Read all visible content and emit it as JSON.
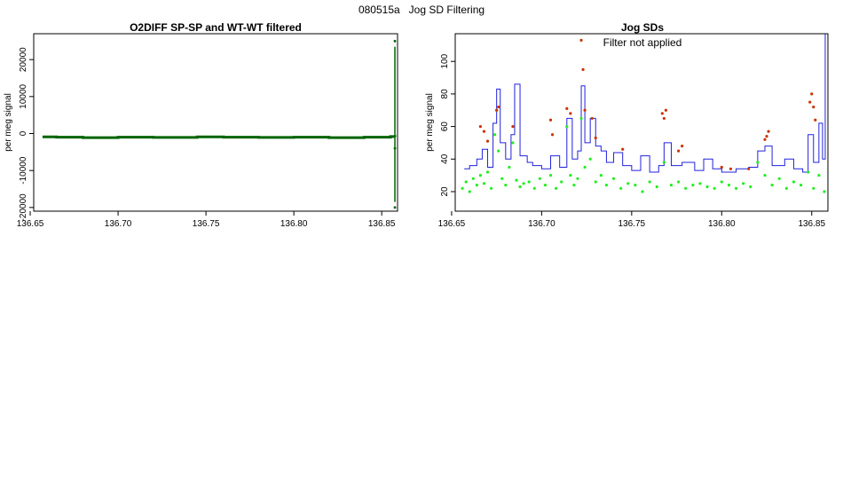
{
  "page": {
    "title": "080515a   Jog SD Filtering"
  },
  "colors": {
    "dark_green": "#006400",
    "bright_green": "#22ee22",
    "blue": "#2222dd",
    "orange_red": "#cc3300"
  },
  "chart_data": [
    {
      "type": "line",
      "title": "O2DIFF SP-SP and WT-WT filtered",
      "ylabel": "per meg signal",
      "xlim": [
        136.652,
        136.859
      ],
      "ylim": [
        -21000,
        27000
      ],
      "xticks": [
        136.65,
        136.7,
        136.75,
        136.8,
        136.85
      ],
      "xtick_labels": [
        "136.65",
        "136.70",
        "136.75",
        "136.80",
        "136.85"
      ],
      "yticks": [
        -20000,
        -10000,
        0,
        10000,
        20000
      ],
      "ytick_labels": [
        "-20000",
        "-10000",
        "0",
        "10000",
        "20000"
      ],
      "series": [
        {
          "color": "dark_green",
          "x": [
            136.657,
            136.665,
            136.68,
            136.7,
            136.72,
            136.745,
            136.76,
            136.78,
            136.8,
            136.82,
            136.84,
            136.855,
            136.8575
          ],
          "y": [
            -900,
            -1000,
            -1100,
            -1000,
            -1050,
            -900,
            -1000,
            -1050,
            -1000,
            -1100,
            -1000,
            -800,
            -900
          ]
        }
      ],
      "spike": {
        "x": 136.8575,
        "y_min": -18500,
        "y_max": 23500,
        "points": [
          {
            "x": 136.8575,
            "y": 25000
          },
          {
            "x": 136.8575,
            "y": -20000
          },
          {
            "x": 136.8575,
            "y": -4000
          }
        ]
      }
    },
    {
      "type": "scatter",
      "title": "Jog SDs",
      "annotation": "Filter not applied",
      "ylabel": "per meg signal",
      "xlim": [
        136.652,
        136.859
      ],
      "ylim": [
        8,
        117
      ],
      "xticks": [
        136.65,
        136.7,
        136.75,
        136.8,
        136.85
      ],
      "xtick_labels": [
        "136.65",
        "136.70",
        "136.75",
        "136.80",
        "136.85"
      ],
      "yticks": [
        20,
        40,
        60,
        80,
        100
      ],
      "ytick_labels": [
        "20",
        "40",
        "60",
        "80",
        "100"
      ],
      "series": [
        {
          "kind": "line",
          "color": "blue",
          "x": [
            136.657,
            136.66,
            136.664,
            136.667,
            136.67,
            136.673,
            136.675,
            136.677,
            136.68,
            136.683,
            136.685,
            136.688,
            136.692,
            136.695,
            136.7,
            136.705,
            136.71,
            136.714,
            136.717,
            136.72,
            136.722,
            136.724,
            136.727,
            136.73,
            136.733,
            136.736,
            136.74,
            136.745,
            136.75,
            136.755,
            136.76,
            136.765,
            136.768,
            136.772,
            136.778,
            136.785,
            136.79,
            136.795,
            136.8,
            136.808,
            136.815,
            136.82,
            136.824,
            136.828,
            136.835,
            136.84,
            136.845,
            136.848,
            136.851,
            136.854,
            136.856,
            136.8575
          ],
          "y": [
            34,
            36,
            40,
            46,
            35,
            62,
            83,
            50,
            40,
            55,
            86,
            42,
            38,
            36,
            34,
            42,
            35,
            65,
            40,
            45,
            85,
            50,
            65,
            48,
            45,
            38,
            44,
            36,
            33,
            42,
            32,
            36,
            50,
            36,
            38,
            33,
            40,
            34,
            32,
            34,
            35,
            45,
            48,
            36,
            40,
            34,
            32,
            55,
            38,
            62,
            40,
            118
          ]
        },
        {
          "kind": "scatter",
          "color": "bright_green",
          "x": [
            136.656,
            136.658,
            136.66,
            136.662,
            136.664,
            136.666,
            136.668,
            136.67,
            136.672,
            136.674,
            136.675,
            136.676,
            136.678,
            136.68,
            136.682,
            136.684,
            136.686,
            136.688,
            136.69,
            136.693,
            136.696,
            136.699,
            136.702,
            136.705,
            136.708,
            136.711,
            136.714,
            136.716,
            136.718,
            136.72,
            136.722,
            136.724,
            136.727,
            136.73,
            136.733,
            136.736,
            136.74,
            136.744,
            136.748,
            136.752,
            136.756,
            136.76,
            136.764,
            136.768,
            136.772,
            136.776,
            136.78,
            136.784,
            136.788,
            136.792,
            136.796,
            136.8,
            136.804,
            136.808,
            136.812,
            136.816,
            136.82,
            136.824,
            136.828,
            136.832,
            136.836,
            136.84,
            136.844,
            136.848,
            136.851,
            136.854,
            136.857
          ],
          "y": [
            22,
            26,
            20,
            28,
            24,
            30,
            25,
            32,
            22,
            55,
            70,
            45,
            28,
            24,
            35,
            50,
            27,
            23,
            25,
            26,
            22,
            28,
            24,
            30,
            22,
            26,
            60,
            30,
            24,
            28,
            65,
            35,
            40,
            26,
            30,
            24,
            28,
            22,
            25,
            24,
            20,
            26,
            23,
            38,
            24,
            26,
            22,
            24,
            25,
            23,
            22,
            26,
            24,
            22,
            25,
            23,
            38,
            30,
            24,
            28,
            22,
            26,
            24,
            32,
            22,
            30,
            20
          ]
        },
        {
          "kind": "scatter",
          "color": "orange_red",
          "x": [
            136.666,
            136.668,
            136.67,
            136.675,
            136.676,
            136.684,
            136.705,
            136.706,
            136.714,
            136.716,
            136.722,
            136.723,
            136.724,
            136.728,
            136.73,
            136.745,
            136.767,
            136.768,
            136.769,
            136.776,
            136.778,
            136.8,
            136.805,
            136.815,
            136.824,
            136.825,
            136.826,
            136.849,
            136.85,
            136.851,
            136.852
          ],
          "y": [
            60,
            57,
            51,
            70,
            72,
            60,
            64,
            55,
            71,
            68,
            113,
            95,
            70,
            65,
            53,
            46,
            68,
            65,
            70,
            45,
            48,
            35,
            34,
            34,
            52,
            54,
            57,
            75,
            80,
            72,
            64
          ]
        }
      ]
    }
  ]
}
